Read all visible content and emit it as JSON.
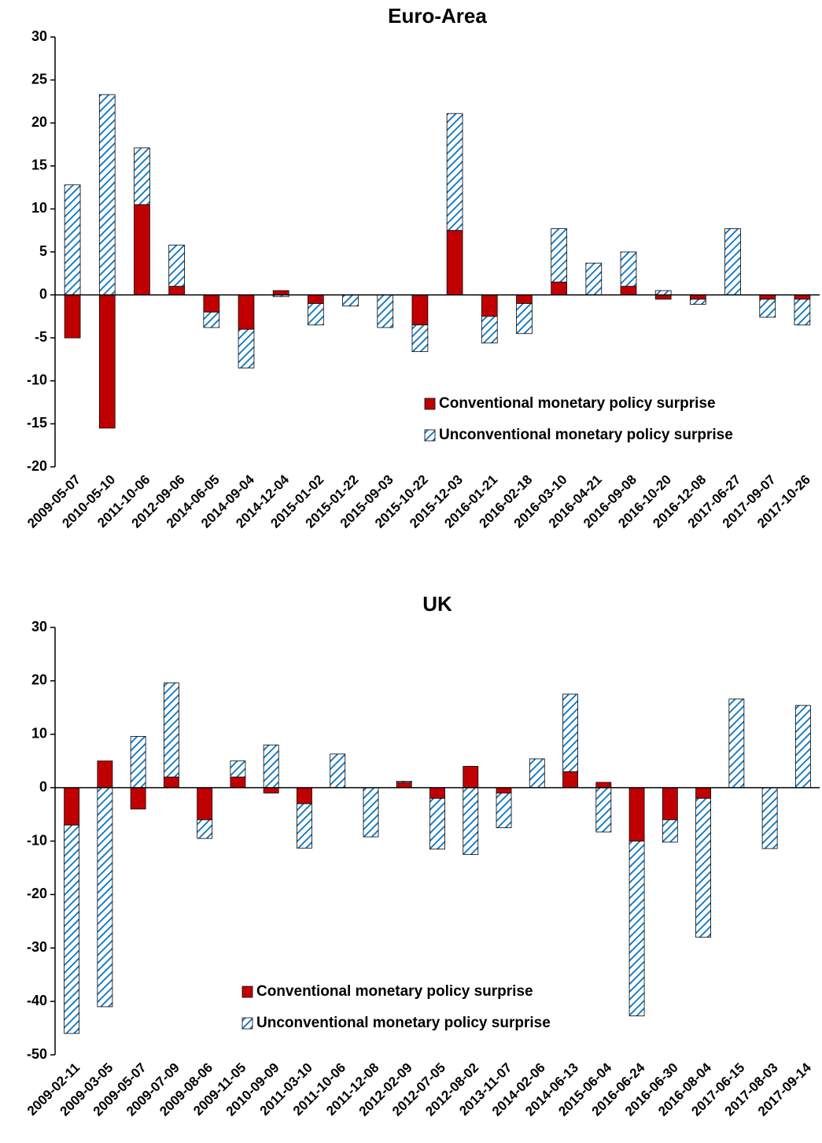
{
  "chart_data": [
    {
      "type": "bar",
      "stacked": true,
      "title": "Euro-Area",
      "legend": "lower right",
      "categories": [
        "2009-05-07",
        "2010-05-10",
        "2011-10-06",
        "2012-09-06",
        "2014-06-05",
        "2014-09-04",
        "2014-12-04",
        "2015-01-02",
        "2015-01-22",
        "2015-09-03",
        "2015-10-22",
        "2015-12-03",
        "2016-01-21",
        "2016-02-18",
        "2016-03-10",
        "2016-04-21",
        "2016-09-08",
        "2016-10-20",
        "2016-12-08",
        "2017-06-27",
        "2017-09-07",
        "2017-10-26"
      ],
      "series": [
        {
          "name": "Conventional monetary policy surprise",
          "color": "#c00000",
          "pattern": "solid",
          "values": [
            -5,
            -15.5,
            10.5,
            1,
            -2,
            -4,
            0.5,
            -1,
            0,
            0,
            -3.5,
            7.5,
            -2.5,
            -1,
            1.5,
            0,
            1,
            -0.5,
            -0.5,
            0,
            -0.5,
            -0.5
          ]
        },
        {
          "name": "Unconventional monetary policy surprise",
          "color": "#0070c0",
          "pattern": "hatch",
          "values": [
            12.8,
            23.3,
            6.6,
            4.8,
            -1.8,
            -4.5,
            -0.2,
            -2.5,
            -1.3,
            -3.8,
            -3.1,
            13.6,
            -3.1,
            -3.5,
            6.2,
            3.7,
            4,
            0.5,
            -0.6,
            7.7,
            -2.1,
            -3
          ]
        }
      ],
      "ylim": [
        -20,
        30
      ],
      "yticks": [
        -20,
        -15,
        -10,
        -5,
        0,
        5,
        10,
        15,
        20,
        25,
        30
      ]
    },
    {
      "type": "bar",
      "stacked": true,
      "title": "UK",
      "legend": "lower center",
      "categories": [
        "2009-02-11",
        "2009-03-05",
        "2009-05-07",
        "2009-07-09",
        "2009-08-06",
        "2009-11-05",
        "2010-09-09",
        "2011-03-10",
        "2011-10-06",
        "2011-12-08",
        "2012-02-09",
        "2012-07-05",
        "2012-08-02",
        "2013-11-07",
        "2014-02-06",
        "2014-06-13",
        "2015-06-04",
        "2016-06-24",
        "2016-06-30",
        "2016-08-04",
        "2017-06-15",
        "2017-08-03",
        "2017-09-14"
      ],
      "series": [
        {
          "name": "Conventional monetary policy surprise",
          "color": "#c00000",
          "pattern": "solid",
          "values": [
            -7,
            5,
            -4,
            2,
            -6,
            2,
            -1,
            -3,
            0,
            0,
            1,
            -2,
            4,
            -1,
            0,
            3,
            1,
            -10,
            -6,
            -2,
            0,
            0,
            0
          ]
        },
        {
          "name": "Unconventional monetary policy surprise",
          "color": "#0070c0",
          "pattern": "hatch",
          "values": [
            -39,
            -41,
            9.6,
            17.6,
            -3.5,
            3,
            8,
            -8.3,
            6.3,
            -9.2,
            0.2,
            -9.5,
            -12.5,
            -6.5,
            5.4,
            14.5,
            -8.3,
            -32.7,
            -4.2,
            -26,
            16.6,
            -11.4,
            15.4
          ]
        }
      ],
      "ylim": [
        -50,
        30
      ],
      "yticks": [
        -50,
        -40,
        -30,
        -20,
        -10,
        0,
        10,
        20,
        30
      ]
    }
  ]
}
